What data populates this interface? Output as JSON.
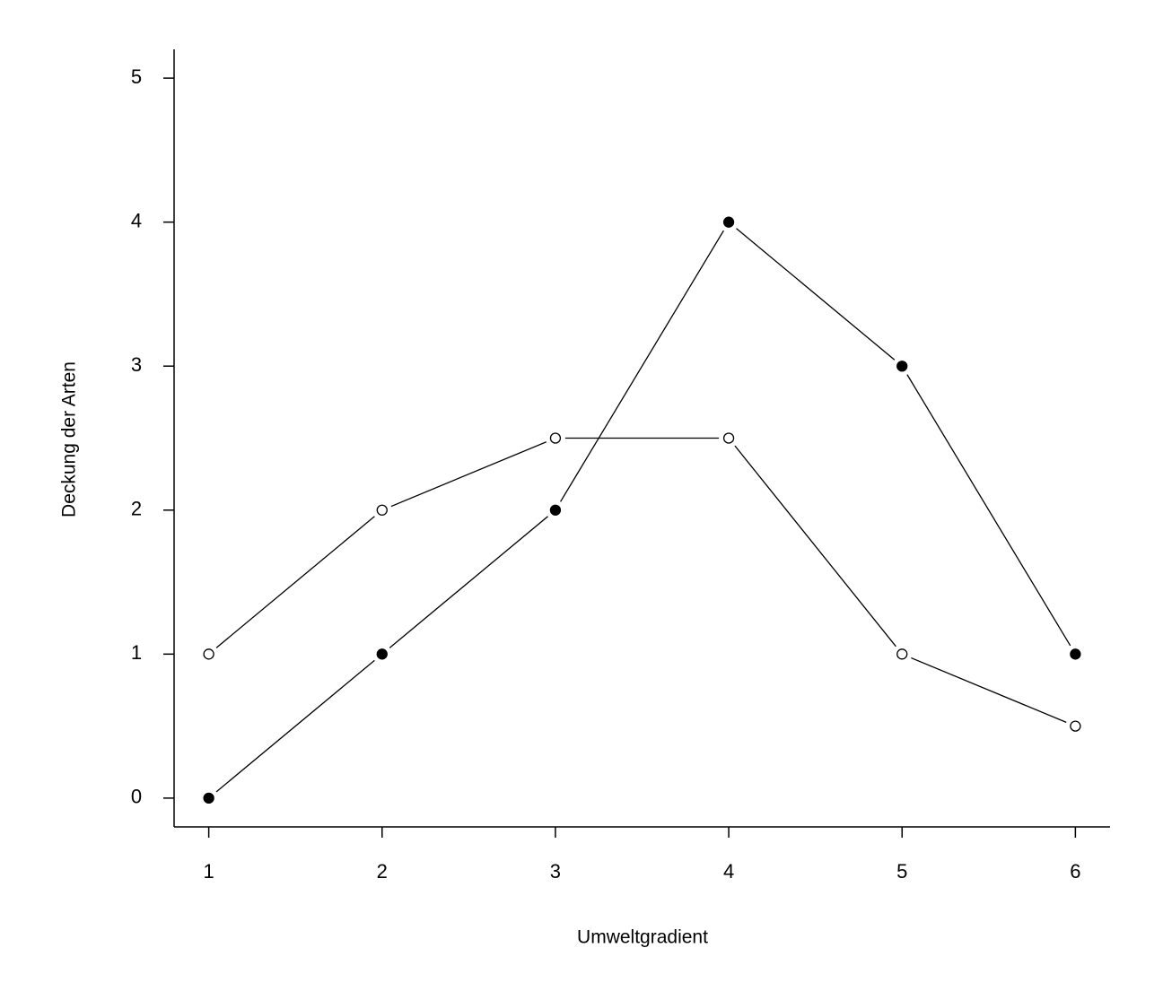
{
  "chart_data": {
    "type": "line",
    "x_label": "Umweltgradient",
    "y_label": "Deckung der Arten",
    "x": [
      1,
      2,
      3,
      4,
      5,
      6
    ],
    "series": [
      {
        "color": "#000000",
        "marker_fill": "#000000",
        "values": [
          0,
          1,
          2,
          4,
          3,
          1
        ]
      },
      {
        "color": "#000000",
        "marker_fill": "#ffffff",
        "values": [
          1,
          2,
          2.5,
          2.5,
          1,
          0.5
        ]
      }
    ],
    "xlim": [
      0.8,
      6.2
    ],
    "xticks": [
      1,
      2,
      3,
      4,
      5,
      6
    ],
    "ylim": [
      -0.2,
      5.2
    ],
    "yticks": [
      0,
      1,
      2,
      3,
      4,
      5
    ],
    "grid": false
  }
}
